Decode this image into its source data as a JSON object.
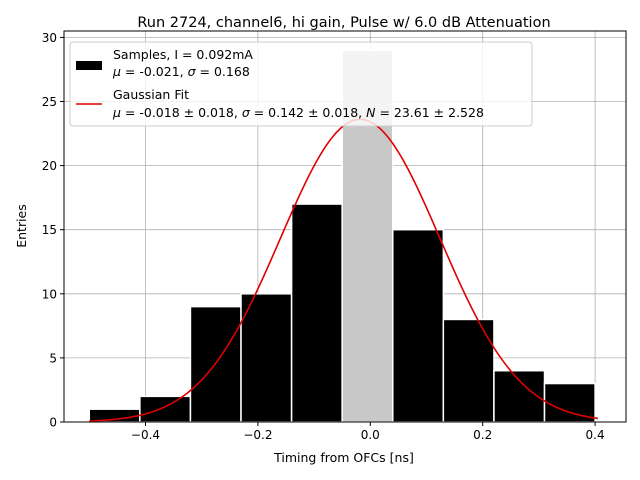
{
  "chart_data": {
    "type": "histogram",
    "title": "Run 2724, channel6, hi gain, Pulse w/ 6.0 dB Attenuation",
    "xlabel": "Timing from OFCs [ns]",
    "ylabel": "Entries",
    "xlim": [
      -0.545,
      0.455
    ],
    "ylim": [
      0,
      30.5
    ],
    "xticks": [
      -0.4,
      -0.2,
      0.0,
      0.2,
      0.4
    ],
    "xtick_labels": [
      "−0.4",
      "−0.2",
      "0.0",
      "0.2",
      "0.4"
    ],
    "yticks": [
      0,
      5,
      10,
      15,
      20,
      25,
      30
    ],
    "ytick_labels": [
      "0",
      "5",
      "10",
      "15",
      "20",
      "25",
      "30"
    ],
    "grid": true,
    "legend_position": "top-left",
    "bin_edges": [
      -0.5,
      -0.41,
      -0.32,
      -0.23,
      -0.14,
      -0.05,
      0.04,
      0.13,
      0.22,
      0.31,
      0.4
    ],
    "counts": [
      1,
      2,
      9,
      10,
      17,
      29,
      15,
      8,
      4,
      3
    ],
    "histogram_color": "#000000",
    "highlight_bin_index": 5,
    "highlight_color": "#c8c8c8",
    "fit": {
      "mu": -0.018,
      "sigma": 0.142,
      "N": 23.61,
      "x_range": [
        -0.5,
        0.405
      ],
      "color": "#e00000"
    },
    "legend": [
      {
        "kind": "patch",
        "line1": "Samples, I = 0.092mA",
        "line2_parts": [
          {
            "t": "μ",
            "italic": true
          },
          {
            "t": " = -0.021, ",
            "italic": false
          },
          {
            "t": "σ",
            "italic": true
          },
          {
            "t": " = 0.168",
            "italic": false
          }
        ]
      },
      {
        "kind": "line",
        "line1": "Gaussian Fit",
        "line2_parts": [
          {
            "t": "μ",
            "italic": true
          },
          {
            "t": " = -0.018 ± 0.018, ",
            "italic": false
          },
          {
            "t": "σ",
            "italic": true
          },
          {
            "t": " = 0.142 ± 0.018, ",
            "italic": false
          },
          {
            "t": "N",
            "italic": true
          },
          {
            "t": " = 23.61 ± 2.528",
            "italic": false
          }
        ]
      }
    ]
  }
}
